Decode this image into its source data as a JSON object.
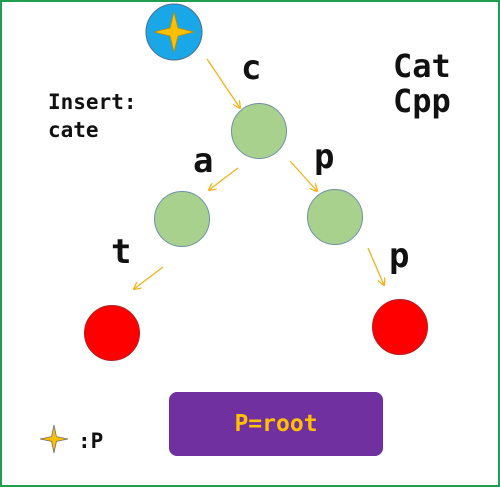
{
  "insert": {
    "line1": "Insert:",
    "line2": "cate"
  },
  "words": [
    "Cat",
    "Cpp"
  ],
  "edges": {
    "root_to_c": "c",
    "c_to_a": "a",
    "c_to_p": "p",
    "a_to_t": "t",
    "p_to_p": "p"
  },
  "pointer": {
    "icon": "star-icon",
    "legend": ":P"
  },
  "status": {
    "text": "P=root"
  },
  "colors": {
    "pointer_circle": "#1aa7e8",
    "star": "#ffc000",
    "inner_node": "#a9d18e",
    "leaf_node": "#ff0000",
    "status_box": "#7030a0",
    "status_text": "#ffc000",
    "frame": "#1e9e4e",
    "arrow": "#f2b31a"
  }
}
